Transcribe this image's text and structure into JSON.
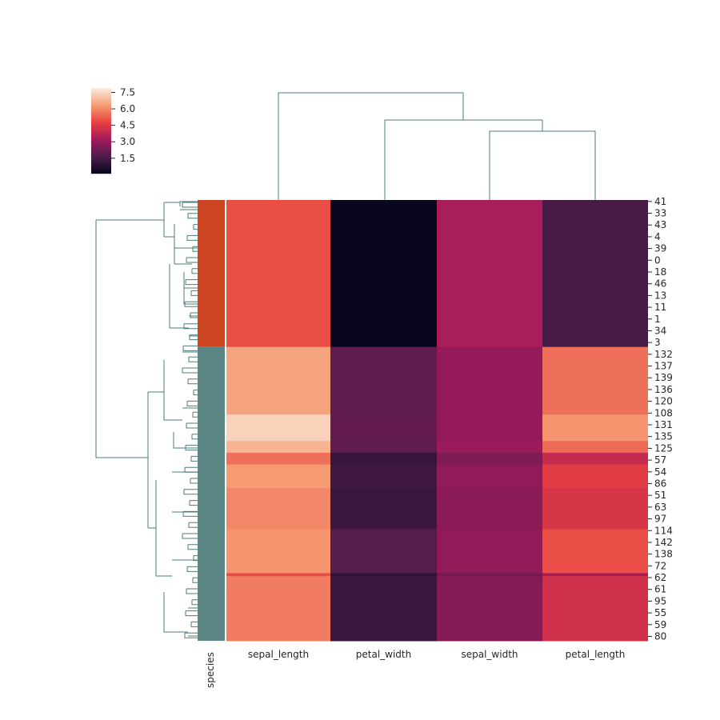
{
  "chart_data": {
    "type": "heatmap",
    "title": "",
    "columns": [
      "sepal_length",
      "petal_width",
      "sepal_width",
      "petal_length"
    ],
    "row_count": 150,
    "row_labels": [
      "41",
      "33",
      "43",
      "4",
      "39",
      "0",
      "18",
      "46",
      "13",
      "11",
      "1",
      "34",
      "3",
      "132",
      "137",
      "139",
      "136",
      "120",
      "108",
      "131",
      "135",
      "125",
      "57",
      "54",
      "86",
      "51",
      "63",
      "97",
      "114",
      "142",
      "138",
      "72",
      "62",
      "61",
      "95",
      "55",
      "59",
      "80"
    ],
    "row_label_step": 4,
    "row_blocks": [
      {
        "rows": [
          0,
          50
        ],
        "values": [
          5.0,
          0.2,
          3.4,
          1.5
        ]
      },
      {
        "rows": [
          50,
          73
        ],
        "values": [
          6.5,
          2.0,
          3.0,
          5.6
        ]
      },
      {
        "rows": [
          73,
          82
        ],
        "values": [
          7.4,
          2.1,
          3.0,
          6.2
        ]
      },
      {
        "rows": [
          82,
          86
        ],
        "values": [
          6.8,
          2.0,
          3.1,
          5.5
        ]
      },
      {
        "rows": [
          86,
          90
        ],
        "values": [
          5.6,
          1.2,
          2.6,
          4.0
        ]
      },
      {
        "rows": [
          90,
          98
        ],
        "values": [
          6.3,
          1.4,
          2.9,
          4.6
        ]
      },
      {
        "rows": [
          98,
          112
        ],
        "values": [
          6.0,
          1.3,
          2.8,
          4.4
        ]
      },
      {
        "rows": [
          112,
          127
        ],
        "values": [
          6.2,
          1.8,
          2.9,
          5.0
        ]
      },
      {
        "rows": [
          127,
          128
        ],
        "values": [
          5.0,
          1.0,
          2.3,
          3.3
        ]
      },
      {
        "rows": [
          128,
          150
        ],
        "values": [
          5.8,
          1.3,
          2.7,
          4.2
        ]
      }
    ],
    "row_colors": {
      "label": "species",
      "blocks": [
        {
          "rows": [
            0,
            50
          ],
          "color": "#cc4420"
        },
        {
          "rows": [
            50,
            150
          ],
          "color": "#5b8785"
        }
      ]
    },
    "colorbar": {
      "ticks": [
        "7.5",
        "6.0",
        "4.5",
        "3.0",
        "1.5"
      ],
      "tick_values": [
        7.5,
        6.0,
        4.5,
        3.0,
        1.5
      ],
      "range": [
        0.1,
        7.9
      ],
      "colormap": "rocket"
    },
    "dendrogram_color": "#4e7b7b"
  }
}
